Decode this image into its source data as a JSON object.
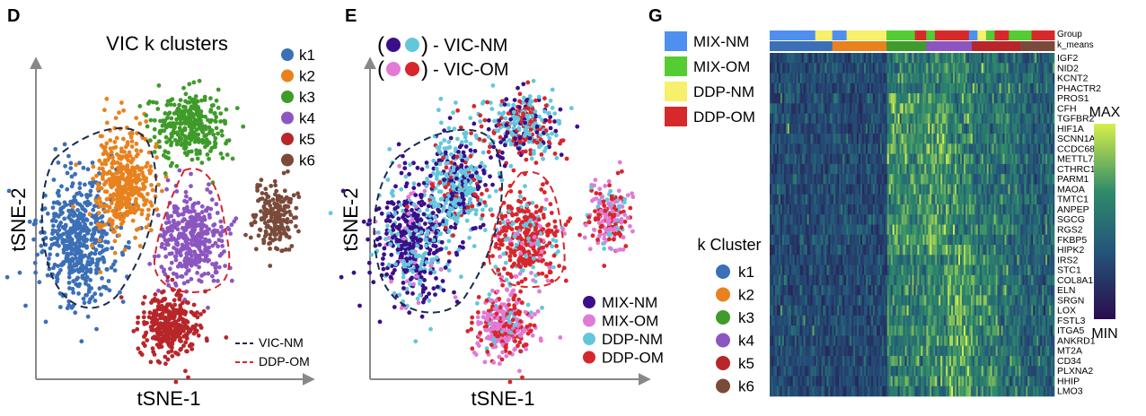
{
  "panels": {
    "D": {
      "letter": "D",
      "title": "VIC k clusters",
      "xlabel": "tSNE-1",
      "ylabel": "tSNE-2",
      "legend": [
        "k1",
        "k2",
        "k3",
        "k4",
        "k5",
        "k6"
      ],
      "outline_legend": [
        "VIC-NM",
        "DDP-OM"
      ]
    },
    "E": {
      "letter": "E",
      "xlabel": "tSNE-1",
      "ylabel": "tSNE-2",
      "top_legend": [
        "- VIC-NM",
        "- VIC-OM"
      ],
      "legend": [
        "MIX-NM",
        "MIX-OM",
        "DDP-NM",
        "DDP-OM"
      ]
    },
    "G": {
      "letter": "G",
      "group_legend": [
        "MIX-NM",
        "MIX-OM",
        "DDP-NM",
        "DDP-OM"
      ],
      "track_labels": [
        "Group",
        "k_means"
      ],
      "cluster_legend_title": "k Cluster",
      "cluster_legend": [
        "k1",
        "k2",
        "k3",
        "k4",
        "k5",
        "k6"
      ],
      "scale_max": "MAX",
      "scale_min": "MIN",
      "genes": [
        "IGF2",
        "NID2",
        "KCNT2",
        "PHACTR2",
        "PROS1",
        "CFH",
        "TGFBR2",
        "HIF1A",
        "SCNN1A",
        "CCDC68",
        "METTL7A",
        "CTHRC1",
        "PARM1",
        "MAOA",
        "TMTC1",
        "ANPEP",
        "SGCG",
        "RGS2",
        "FKBP5",
        "HIPK2",
        "IRS2",
        "STC1",
        "COL8A1",
        "ELN",
        "SRGN",
        "LOX",
        "FSTL3",
        "ITGA5",
        "ANKRD1",
        "MT2A",
        "CD34",
        "PLXNA2",
        "HHIP",
        "LMO3"
      ]
    }
  },
  "colors": {
    "k1": "#3b6fb6",
    "k2": "#e8821e",
    "k3": "#3f9b2a",
    "k4": "#8c56c0",
    "k5": "#b8262a",
    "k6": "#7a4a3a",
    "MIX-NM": "#3a0f8a",
    "MIX-OM": "#e27ad6",
    "DDP-NM": "#63c7dc",
    "DDP-OM": "#d7262c",
    "grp_MIX-NM": "#4e8ff0",
    "grp_MIX-OM": "#55cc33",
    "grp_DDP-NM": "#f6f06a",
    "grp_DDP-OM": "#d62a2a",
    "vic_nm_line": "#1a2a50",
    "ddp_om_line": "#d7262c"
  },
  "chart_data": [
    {
      "type": "scatter",
      "panel": "D",
      "title": "VIC k clusters",
      "xlabel": "tSNE-1",
      "ylabel": "tSNE-2",
      "series": [
        {
          "name": "k1",
          "values": []
        },
        {
          "name": "k2",
          "values": []
        },
        {
          "name": "k3",
          "values": []
        },
        {
          "name": "k4",
          "values": []
        },
        {
          "name": "k5",
          "values": []
        },
        {
          "name": "k6",
          "values": []
        }
      ]
    },
    {
      "type": "scatter",
      "panel": "E",
      "xlabel": "tSNE-1",
      "ylabel": "tSNE-2",
      "series": [
        {
          "name": "MIX-NM",
          "values": []
        },
        {
          "name": "MIX-OM",
          "values": []
        },
        {
          "name": "DDP-NM",
          "values": []
        },
        {
          "name": "DDP-OM",
          "values": []
        }
      ]
    },
    {
      "type": "heatmap",
      "panel": "G",
      "rows": [
        "IGF2",
        "NID2",
        "KCNT2",
        "PHACTR2",
        "PROS1",
        "CFH",
        "TGFBR2",
        "HIF1A",
        "SCNN1A",
        "CCDC68",
        "METTL7A",
        "CTHRC1",
        "PARM1",
        "MAOA",
        "TMTC1",
        "ANPEP",
        "SGCG",
        "RGS2",
        "FKBP5",
        "HIPK2",
        "IRS2",
        "STC1",
        "COL8A1",
        "ELN",
        "SRGN",
        "LOX",
        "FSTL3",
        "ITGA5",
        "ANKRD1",
        "MT2A",
        "CD34",
        "PLXNA2",
        "HHIP",
        "LMO3"
      ],
      "column_tracks": {
        "Group": [
          "MIX-NM",
          "DDP-NM",
          "MIX-NM",
          "DDP-NM",
          "MIX-OM",
          "DDP-OM",
          "MIX-OM",
          "DDP-OM",
          "MIX-NM",
          "DDP-NM",
          "DDP-OM",
          "MIX-OM",
          "DDP-OM"
        ],
        "k_means": [
          "k1",
          "k2",
          "k3",
          "k4",
          "k5",
          "k6"
        ]
      },
      "scale": [
        "MIN",
        "MAX"
      ]
    }
  ]
}
